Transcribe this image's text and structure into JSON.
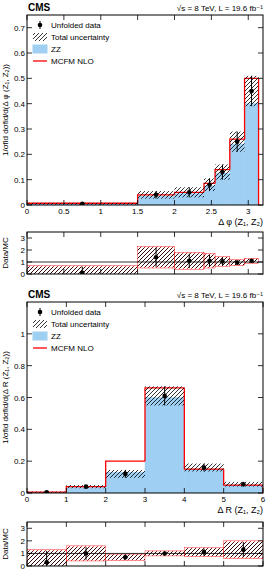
{
  "chart_data": [
    {
      "type": "histogram",
      "title": "CMS",
      "subtitle": "√s = 8 TeV, L = 19.6 fb⁻¹",
      "x_label": "Δ φ (Z₁, Z₂)",
      "y_label": "1/σfid dσfid/d(Δ φ (Z₁, Z₂))",
      "bins": [
        0,
        1.5,
        2.0,
        2.4,
        2.55,
        2.75,
        2.95,
        3.14
      ],
      "xlim": [
        0,
        3.2
      ],
      "ylim": [
        0,
        0.75
      ],
      "xticks": [
        0,
        0.5,
        1,
        1.5,
        2,
        2.5,
        3
      ],
      "yticks": [
        0,
        0.1,
        0.2,
        0.3,
        0.4,
        0.5,
        0.6,
        0.7
      ],
      "legend": "upper left",
      "series": [
        {
          "name": "Unfolded data",
          "type": "points",
          "marker": "circle",
          "color": "#000000",
          "values": [
            0.005,
            0.04,
            0.05,
            0.08,
            0.13,
            0.25,
            0.45
          ],
          "errors": [
            0.004,
            0.015,
            0.02,
            0.025,
            0.03,
            0.04,
            0.06
          ],
          "error_label": "Total uncertainty"
        },
        {
          "name": "ZZ",
          "type": "bar",
          "color": "#9fcff2",
          "values": [
            0.006,
            0.035,
            0.045,
            0.075,
            0.125,
            0.24,
            0.4
          ]
        },
        {
          "name": "MCFM NLO",
          "type": "step",
          "color": "#ff0000",
          "values": [
            0.007,
            0.04,
            0.05,
            0.085,
            0.14,
            0.26,
            0.5
          ]
        }
      ]
    },
    {
      "type": "histogram",
      "y_label": "Data/MC",
      "bins": [
        0,
        1.5,
        2.0,
        2.4,
        2.55,
        2.75,
        2.95,
        3.14
      ],
      "xlim": [
        0,
        3.2
      ],
      "ylim": [
        0,
        3.5
      ],
      "xticks": [
        0,
        0.5,
        1,
        1.5,
        2,
        2.5,
        3
      ],
      "yticks": [
        0,
        1,
        2,
        3
      ],
      "tick_labels": "y",
      "hline": 1,
      "series": [
        {
          "type": "points",
          "marker": "circle",
          "color": "#000000",
          "values": [
            0.1,
            1.4,
            1.1,
            1.1,
            1.05,
            0.95,
            1.1
          ],
          "errors": [
            0.5,
            0.8,
            0.6,
            0.5,
            0.35,
            0.2,
            0.15
          ],
          "mc_errors": [
            0.6,
            0.9,
            0.7,
            0.6,
            0.4,
            0.25,
            0.2
          ]
        }
      ]
    },
    {
      "type": "histogram",
      "title": "CMS",
      "subtitle": "√s = 8 TeV, L = 19.6 fb⁻¹",
      "x_label": "Δ R (Z₁, Z₂)",
      "y_label": "1/σfid dσfid/d(Δ R (Z₁, Z₂))",
      "bins": [
        0,
        1,
        2,
        3,
        4,
        5,
        6
      ],
      "xlim": [
        0,
        6
      ],
      "ylim": [
        0,
        1.2
      ],
      "xticks": [
        0,
        1,
        2,
        3,
        4,
        5,
        6
      ],
      "yticks": [
        0,
        0.2,
        0.4,
        0.6,
        0.8,
        1
      ],
      "legend": "upper left",
      "series": [
        {
          "name": "Unfolded data",
          "type": "points",
          "marker": "circle",
          "color": "#000000",
          "values": [
            0.005,
            0.04,
            0.12,
            0.61,
            0.16,
            0.055
          ],
          "errors": [
            0.004,
            0.01,
            0.025,
            0.06,
            0.025,
            0.015
          ],
          "error_label": "Total uncertainty"
        },
        {
          "name": "ZZ",
          "type": "bar",
          "color": "#9fcff2",
          "values": [
            0.004,
            0.035,
            0.13,
            0.6,
            0.15,
            0.05
          ]
        },
        {
          "name": "MCFM NLO",
          "type": "step",
          "color": "#ff0000",
          "values": [
            0.006,
            0.04,
            0.2,
            0.66,
            0.15,
            0.05
          ]
        }
      ]
    },
    {
      "type": "histogram",
      "y_label": "Data/MC",
      "bins": [
        0,
        1,
        2,
        3,
        4,
        5,
        6
      ],
      "xlim": [
        0,
        6
      ],
      "ylim": [
        0,
        3.5
      ],
      "xticks": [
        0,
        1,
        2,
        3,
        4,
        5,
        6
      ],
      "yticks": [
        0,
        1,
        2,
        3
      ],
      "tick_labels": "y",
      "hline": 1,
      "series": [
        {
          "type": "points",
          "marker": "circle",
          "color": "#000000",
          "values": [
            0.3,
            1.0,
            0.7,
            1.0,
            1.1,
            1.3
          ],
          "errors": [
            0.9,
            0.5,
            0.2,
            0.15,
            0.3,
            0.6
          ],
          "mc_errors": [
            1.0,
            0.6,
            0.25,
            0.2,
            0.35,
            0.7
          ]
        }
      ]
    }
  ]
}
